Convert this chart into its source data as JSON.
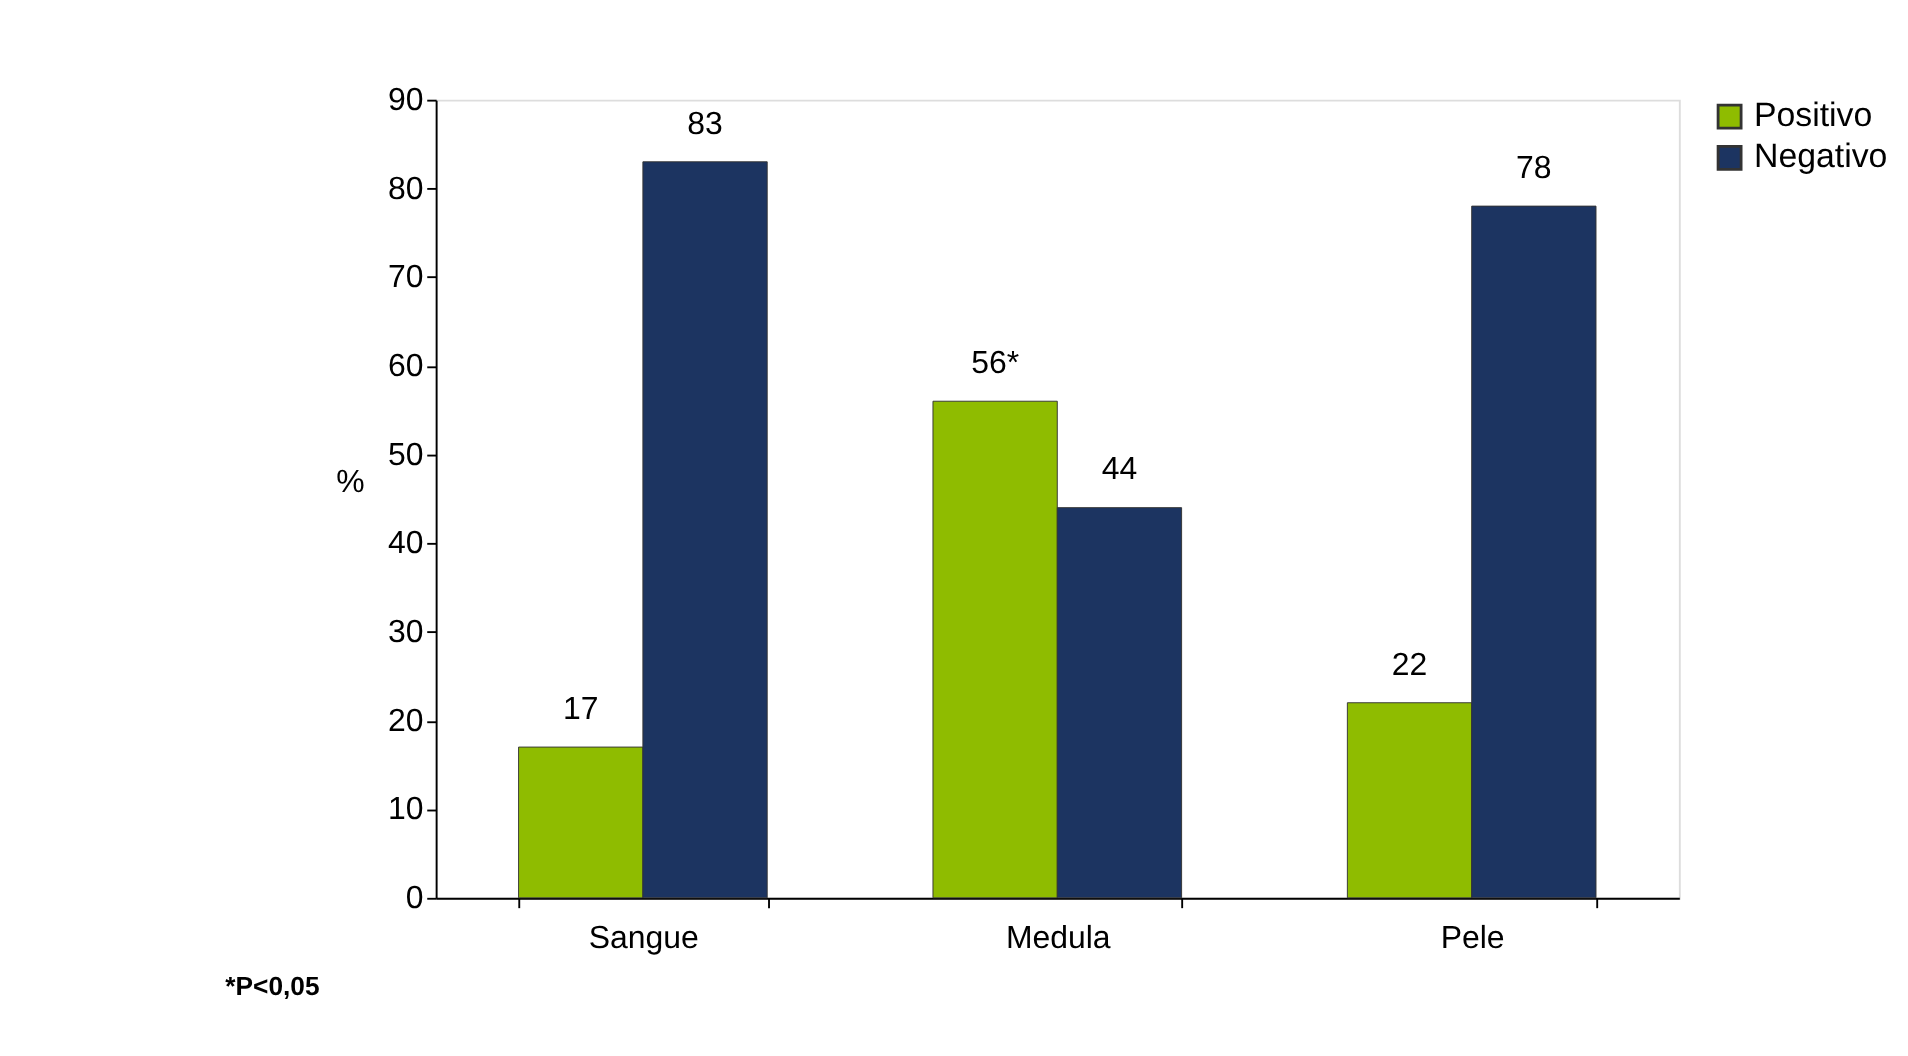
{
  "chart_data": {
    "type": "bar",
    "ylabel": "%",
    "categories": [
      "Sangue",
      "Medula",
      "Pele"
    ],
    "series": [
      {
        "name": "Positivo",
        "color": "#8fbc00",
        "values": [
          17,
          56,
          22
        ],
        "value_labels": [
          "17",
          "56*",
          "22"
        ]
      },
      {
        "name": "Negativo",
        "color": "#1c3461",
        "values": [
          83,
          44,
          78
        ],
        "value_labels": [
          "83",
          "44",
          "78"
        ]
      }
    ],
    "ylim": [
      0,
      90
    ],
    "yticks": [
      0,
      10,
      20,
      30,
      40,
      50,
      60,
      70,
      80,
      90
    ],
    "grid": false,
    "legend": "top right",
    "annotations": [
      "*P<0,05"
    ]
  }
}
